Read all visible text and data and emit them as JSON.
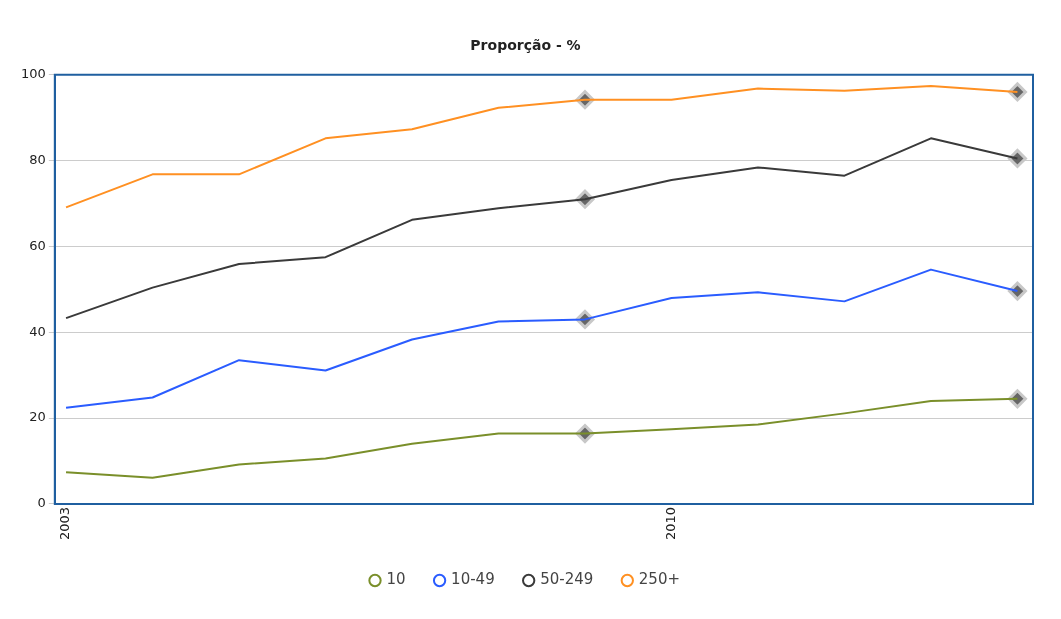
{
  "chart_data": {
    "type": "line",
    "title": "Proporção - %",
    "x": [
      2003,
      2004,
      2005,
      2006,
      2007,
      2008,
      2009,
      2010,
      2011,
      2012,
      2013,
      2014
    ],
    "series": [
      {
        "name": "10",
        "color": "#7a8f2a",
        "values": [
          7.4,
          6.1,
          9.2,
          10.6,
          14.0,
          16.4,
          16.4,
          17.4,
          18.5,
          21.1,
          24.0,
          24.5
        ]
      },
      {
        "name": "10-49",
        "color": "#2a5cff",
        "values": [
          22.4,
          24.8,
          33.5,
          31.1,
          38.3,
          42.5,
          43.0,
          48.0,
          49.3,
          47.2,
          54.6,
          49.6
        ]
      },
      {
        "name": "50-249",
        "color": "#3a3a3a",
        "values": [
          43.3,
          50.4,
          55.9,
          57.5,
          66.2,
          68.9,
          71.0,
          75.5,
          78.4,
          76.5,
          85.2,
          80.5
        ]
      },
      {
        "name": "250+",
        "color": "#ff9022",
        "values": [
          69.1,
          76.8,
          76.8,
          85.2,
          87.3,
          92.3,
          94.2,
          94.2,
          96.8,
          96.3,
          97.4,
          96.0
        ]
      },
      {
        "type": "scatter",
        "color": "#666666",
        "marker": "diamond",
        "values": [
          null,
          null,
          null,
          null,
          null,
          null,
          16.4,
          null,
          null,
          null,
          null,
          24.5
        ]
      },
      {
        "type": "scatter",
        "color": "#666666",
        "marker": "diamond",
        "values": [
          null,
          null,
          null,
          null,
          null,
          null,
          43.0,
          null,
          null,
          null,
          null,
          49.6
        ]
      },
      {
        "type": "scatter",
        "color": "#666666",
        "marker": "diamond",
        "values": [
          null,
          null,
          null,
          null,
          null,
          null,
          71.0,
          null,
          null,
          null,
          null,
          80.5
        ]
      },
      {
        "type": "scatter",
        "color": "#666666",
        "marker": "diamond",
        "values": [
          null,
          null,
          null,
          null,
          null,
          null,
          94.2,
          null,
          null,
          null,
          null,
          96.0
        ]
      }
    ],
    "xlim": [
      2002.87,
      2014.18
    ],
    "xticks": [
      2003,
      2010
    ],
    "ylim": [
      0,
      100
    ],
    "yticks": [
      0,
      20,
      40,
      60,
      80,
      100
    ],
    "grid": "y",
    "legend": "bottom",
    "marker": "none",
    "line_style": "solid"
  }
}
